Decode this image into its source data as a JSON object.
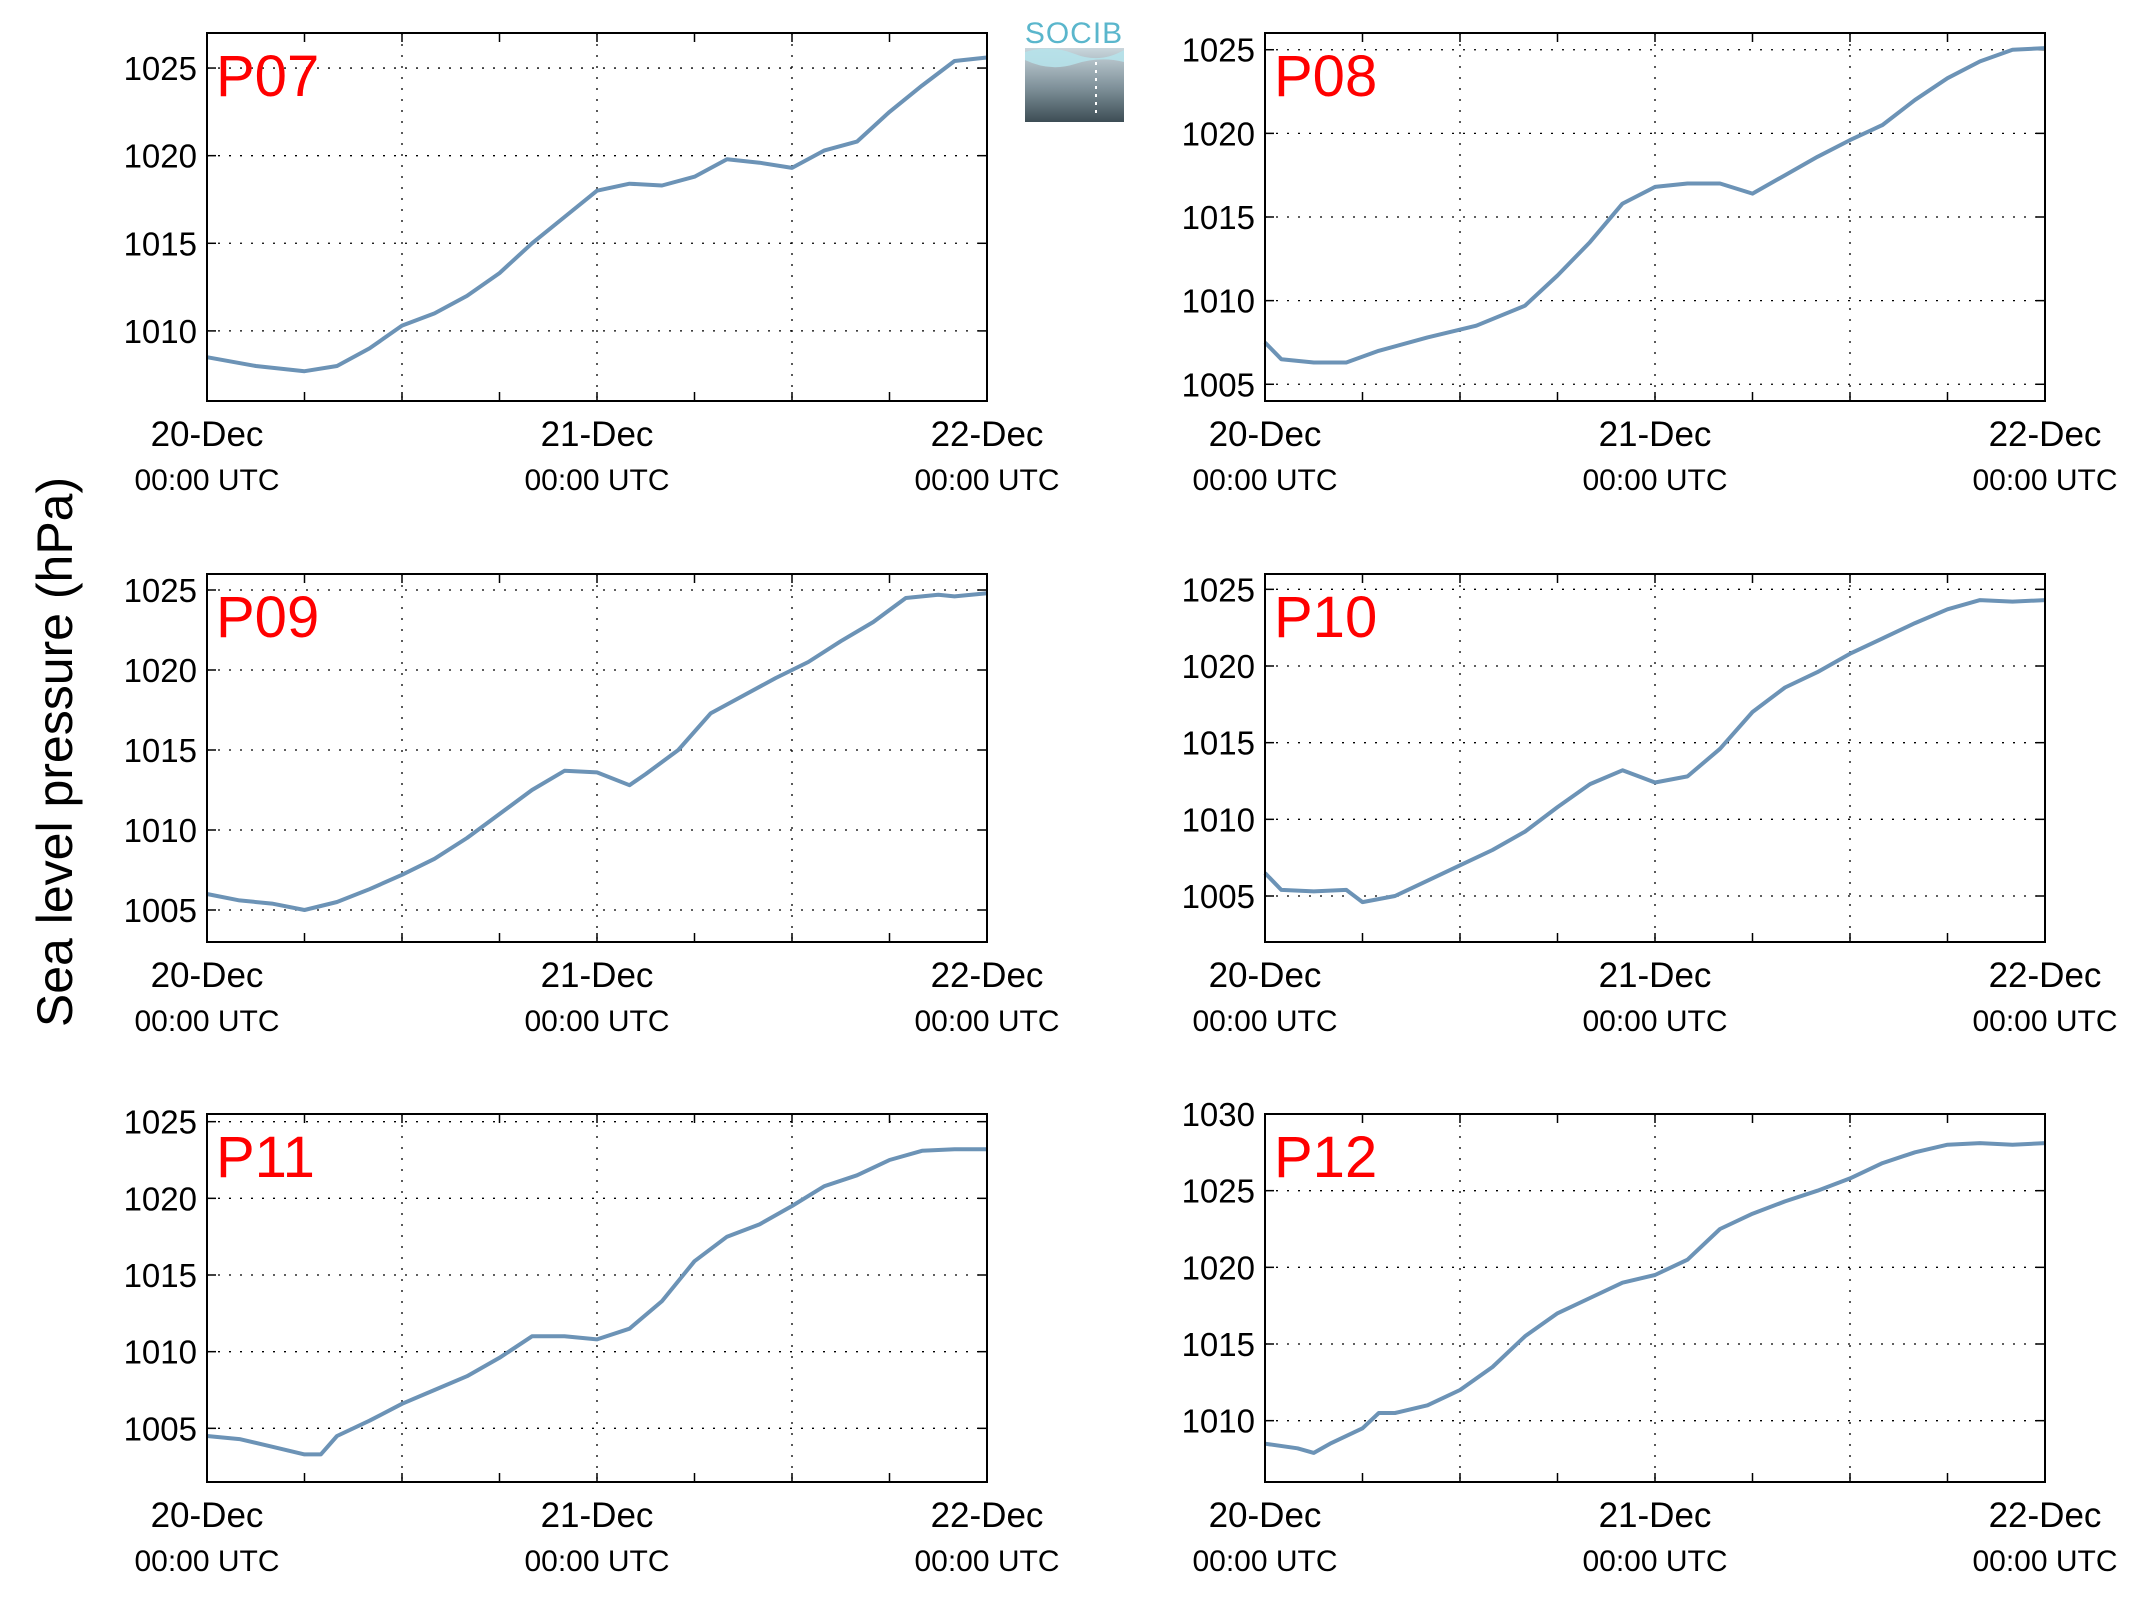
{
  "figure": {
    "ylabel": "Sea level pressure (hPa)",
    "logo_text": "SOCIB",
    "line_color": "#6c93b6",
    "station_label_color": "#ff0000"
  },
  "chart_data": [
    {
      "type": "line",
      "title": "P07",
      "x_tick_labels": [
        [
          "20-Dec",
          "00:00 UTC"
        ],
        [
          "21-Dec",
          "00:00 UTC"
        ],
        [
          "22-Dec",
          "00:00 UTC"
        ]
      ],
      "ylim": [
        1006,
        1027
      ],
      "yticks": [
        1010,
        1015,
        1020,
        1025
      ],
      "grid": true,
      "series": [
        {
          "x": [
            0,
            3,
            6,
            8,
            10,
            12,
            14,
            16,
            18,
            20,
            22,
            24,
            26,
            28,
            30,
            32,
            34,
            36,
            38,
            40,
            42,
            44,
            46,
            48
          ],
          "values": [
            1008.5,
            1008.0,
            1007.7,
            1008.0,
            1009.0,
            1010.3,
            1011.0,
            1012.0,
            1013.3,
            1015.0,
            1016.5,
            1018.0,
            1018.4,
            1018.3,
            1018.8,
            1019.8,
            1019.6,
            1019.3,
            1020.3,
            1020.8,
            1022.5,
            1024.0,
            1025.4,
            1025.6
          ]
        }
      ]
    },
    {
      "type": "line",
      "title": "P08",
      "x_tick_labels": [
        [
          "20-Dec",
          "00:00 UTC"
        ],
        [
          "21-Dec",
          "00:00 UTC"
        ],
        [
          "22-Dec",
          "00:00 UTC"
        ]
      ],
      "ylim": [
        1004,
        1026
      ],
      "yticks": [
        1005,
        1010,
        1015,
        1020,
        1025
      ],
      "grid": true,
      "series": [
        {
          "x": [
            0,
            1,
            3,
            5,
            7,
            10,
            13,
            16,
            18,
            20,
            22,
            24,
            26,
            28,
            30,
            32,
            34,
            36,
            38,
            40,
            42,
            44,
            46,
            48
          ],
          "values": [
            1007.5,
            1006.5,
            1006.3,
            1006.3,
            1007.0,
            1007.8,
            1008.5,
            1009.7,
            1011.5,
            1013.5,
            1015.8,
            1016.8,
            1017.0,
            1017.0,
            1016.4,
            1017.5,
            1018.6,
            1019.6,
            1020.5,
            1022.0,
            1023.3,
            1024.3,
            1025.0,
            1025.1
          ]
        }
      ]
    },
    {
      "type": "line",
      "title": "P09",
      "x_tick_labels": [
        [
          "20-Dec",
          "00:00 UTC"
        ],
        [
          "21-Dec",
          "00:00 UTC"
        ],
        [
          "22-Dec",
          "00:00 UTC"
        ]
      ],
      "ylim": [
        1003,
        1026
      ],
      "yticks": [
        1005,
        1010,
        1015,
        1020,
        1025
      ],
      "grid": true,
      "series": [
        {
          "x": [
            0,
            2,
            4,
            6,
            8,
            10,
            12,
            14,
            16,
            18,
            20,
            22,
            24,
            26,
            27,
            29,
            31,
            33,
            35,
            37,
            39,
            41,
            43,
            45,
            46,
            48
          ],
          "values": [
            1006.0,
            1005.6,
            1005.4,
            1005.0,
            1005.5,
            1006.3,
            1007.2,
            1008.2,
            1009.5,
            1011.0,
            1012.5,
            1013.7,
            1013.6,
            1012.8,
            1013.5,
            1015.0,
            1017.3,
            1018.4,
            1019.5,
            1020.5,
            1021.8,
            1023.0,
            1024.5,
            1024.7,
            1024.6,
            1024.8
          ]
        }
      ]
    },
    {
      "type": "line",
      "title": "P10",
      "x_tick_labels": [
        [
          "20-Dec",
          "00:00 UTC"
        ],
        [
          "21-Dec",
          "00:00 UTC"
        ],
        [
          "22-Dec",
          "00:00 UTC"
        ]
      ],
      "ylim": [
        1002,
        1026
      ],
      "yticks": [
        1005,
        1010,
        1015,
        1020,
        1025
      ],
      "grid": true,
      "series": [
        {
          "x": [
            0,
            1,
            3,
            5,
            6,
            8,
            10,
            12,
            14,
            16,
            18,
            20,
            22,
            23,
            24,
            26,
            28,
            30,
            32,
            34,
            36,
            38,
            40,
            42,
            44,
            46,
            48
          ],
          "values": [
            1006.5,
            1005.4,
            1005.3,
            1005.4,
            1004.6,
            1005.0,
            1006.0,
            1007.0,
            1008.0,
            1009.2,
            1010.8,
            1012.3,
            1013.2,
            1012.8,
            1012.4,
            1012.8,
            1014.6,
            1017.0,
            1018.6,
            1019.6,
            1020.8,
            1021.8,
            1022.8,
            1023.7,
            1024.3,
            1024.2,
            1024.3
          ]
        }
      ]
    },
    {
      "type": "line",
      "title": "P11",
      "x_tick_labels": [
        [
          "20-Dec",
          "00:00 UTC"
        ],
        [
          "21-Dec",
          "00:00 UTC"
        ],
        [
          "22-Dec",
          "00:00 UTC"
        ]
      ],
      "ylim": [
        1001.5,
        1025.5
      ],
      "yticks": [
        1005,
        1010,
        1015,
        1020,
        1025
      ],
      "grid": true,
      "series": [
        {
          "x": [
            0,
            2,
            4,
            6,
            7,
            8,
            10,
            12,
            14,
            16,
            18,
            20,
            22,
            24,
            26,
            28,
            30,
            32,
            34,
            36,
            38,
            40,
            42,
            44,
            46,
            48
          ],
          "values": [
            1004.5,
            1004.3,
            1003.8,
            1003.3,
            1003.3,
            1004.5,
            1005.5,
            1006.6,
            1007.5,
            1008.4,
            1009.6,
            1011.0,
            1011.0,
            1010.8,
            1011.5,
            1013.3,
            1015.9,
            1017.5,
            1018.3,
            1019.5,
            1020.8,
            1021.5,
            1022.5,
            1023.1,
            1023.2,
            1023.2
          ]
        }
      ]
    },
    {
      "type": "line",
      "title": "P12",
      "x_tick_labels": [
        [
          "20-Dec",
          "00:00 UTC"
        ],
        [
          "21-Dec",
          "00:00 UTC"
        ],
        [
          "22-Dec",
          "00:00 UTC"
        ]
      ],
      "ylim": [
        1006,
        1030
      ],
      "yticks": [
        1010,
        1015,
        1020,
        1025,
        1030
      ],
      "grid": true,
      "series": [
        {
          "x": [
            0,
            2,
            3,
            4,
            6,
            7,
            8,
            10,
            12,
            14,
            16,
            18,
            20,
            22,
            24,
            26,
            28,
            30,
            32,
            34,
            36,
            38,
            40,
            42,
            44,
            46,
            48
          ],
          "values": [
            1008.5,
            1008.2,
            1007.9,
            1008.5,
            1009.5,
            1010.5,
            1010.5,
            1011.0,
            1012.0,
            1013.5,
            1015.5,
            1017.0,
            1018.0,
            1019.0,
            1019.5,
            1020.5,
            1022.5,
            1023.5,
            1024.3,
            1025.0,
            1025.8,
            1026.8,
            1027.5,
            1028.0,
            1028.1,
            1028.0,
            1028.1
          ]
        }
      ]
    }
  ]
}
